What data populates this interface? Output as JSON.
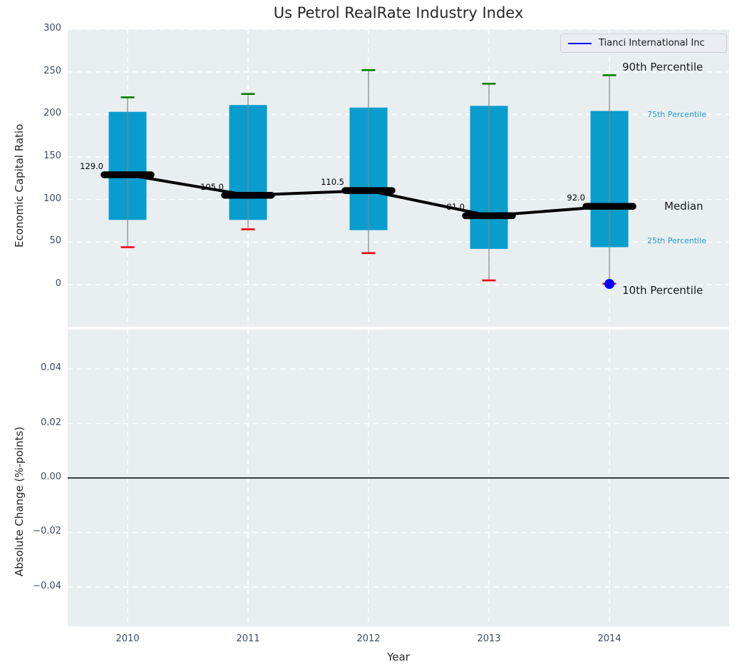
{
  "title": "Us Petrol RealRate Industry Index",
  "legend": {
    "series_label": "Tianci International Inc",
    "line_color": "#0000ff"
  },
  "axes": {
    "top_ylabel": "Economic Capital Ratio",
    "bottom_ylabel": "Absolute Change (%-points)",
    "xlabel": "Year"
  },
  "annotations": {
    "p90": "90th Percentile",
    "p75": "75th Percentile",
    "median": "Median",
    "p25": "25th Percentile",
    "p10": "10th Percentile"
  },
  "colors": {
    "box_fill": "#099dcd",
    "whisker": "#848484",
    "cap_high": "#007f00",
    "cap_low": "#f00010",
    "median_line": "#000000",
    "company_marker": "#0000ff",
    "plot_bg": "#e9eef0",
    "grid": "#ffffff",
    "zero_line": "#000000",
    "tick_text": "#3d4d63",
    "annotation_cyan": "#1f9bcd"
  },
  "chart_data": [
    {
      "type": "boxplot",
      "panel": "top",
      "title": "Us Petrol RealRate Industry Index",
      "xlabel": "Year",
      "ylabel": "Economic Capital Ratio",
      "categories": [
        "2010",
        "2011",
        "2012",
        "2013",
        "2014"
      ],
      "yticks": [
        0,
        50,
        100,
        150,
        200,
        250,
        300
      ],
      "ytick_labels": [
        "0",
        "50",
        "100",
        "150",
        "200",
        "250",
        "300"
      ],
      "ylim": [
        -50,
        301
      ],
      "grid": true,
      "legend_position": "upper right",
      "boxes": [
        {
          "year": "2010",
          "p10": 44,
          "p25": 76,
          "median": 129.0,
          "p75": 203,
          "p90": 220
        },
        {
          "year": "2011",
          "p10": 65,
          "p25": 76,
          "median": 105.0,
          "p75": 211,
          "p90": 224
        },
        {
          "year": "2012",
          "p10": 37,
          "p25": 64,
          "median": 110.5,
          "p75": 208,
          "p90": 252
        },
        {
          "year": "2013",
          "p10": 5,
          "p25": 42,
          "median": 81.0,
          "p75": 210,
          "p90": 236
        },
        {
          "year": "2014",
          "p10": 1,
          "p25": 44,
          "median": 92.0,
          "p75": 204,
          "p90": 246
        }
      ],
      "median_labels": [
        "129.0",
        "105.0",
        "110.5",
        "81.0",
        "92.0"
      ],
      "median_series": [
        129.0,
        105.0,
        110.5,
        81.0,
        92.0
      ],
      "company_points": [
        {
          "year": "2014",
          "value": 0.8
        }
      ]
    },
    {
      "type": "line",
      "panel": "bottom",
      "ylabel": "Absolute Change (%-points)",
      "categories": [
        "2010",
        "2011",
        "2012",
        "2013",
        "2014"
      ],
      "yticks": [
        0.04,
        0.02,
        0.0,
        -0.02,
        -0.04
      ],
      "ytick_labels": [
        "0.04",
        "0.02",
        "0.00",
        "−0.02",
        "−0.04"
      ],
      "ylim": [
        -0.0545,
        0.0545
      ],
      "grid": true,
      "zero_line": true,
      "series": []
    }
  ]
}
